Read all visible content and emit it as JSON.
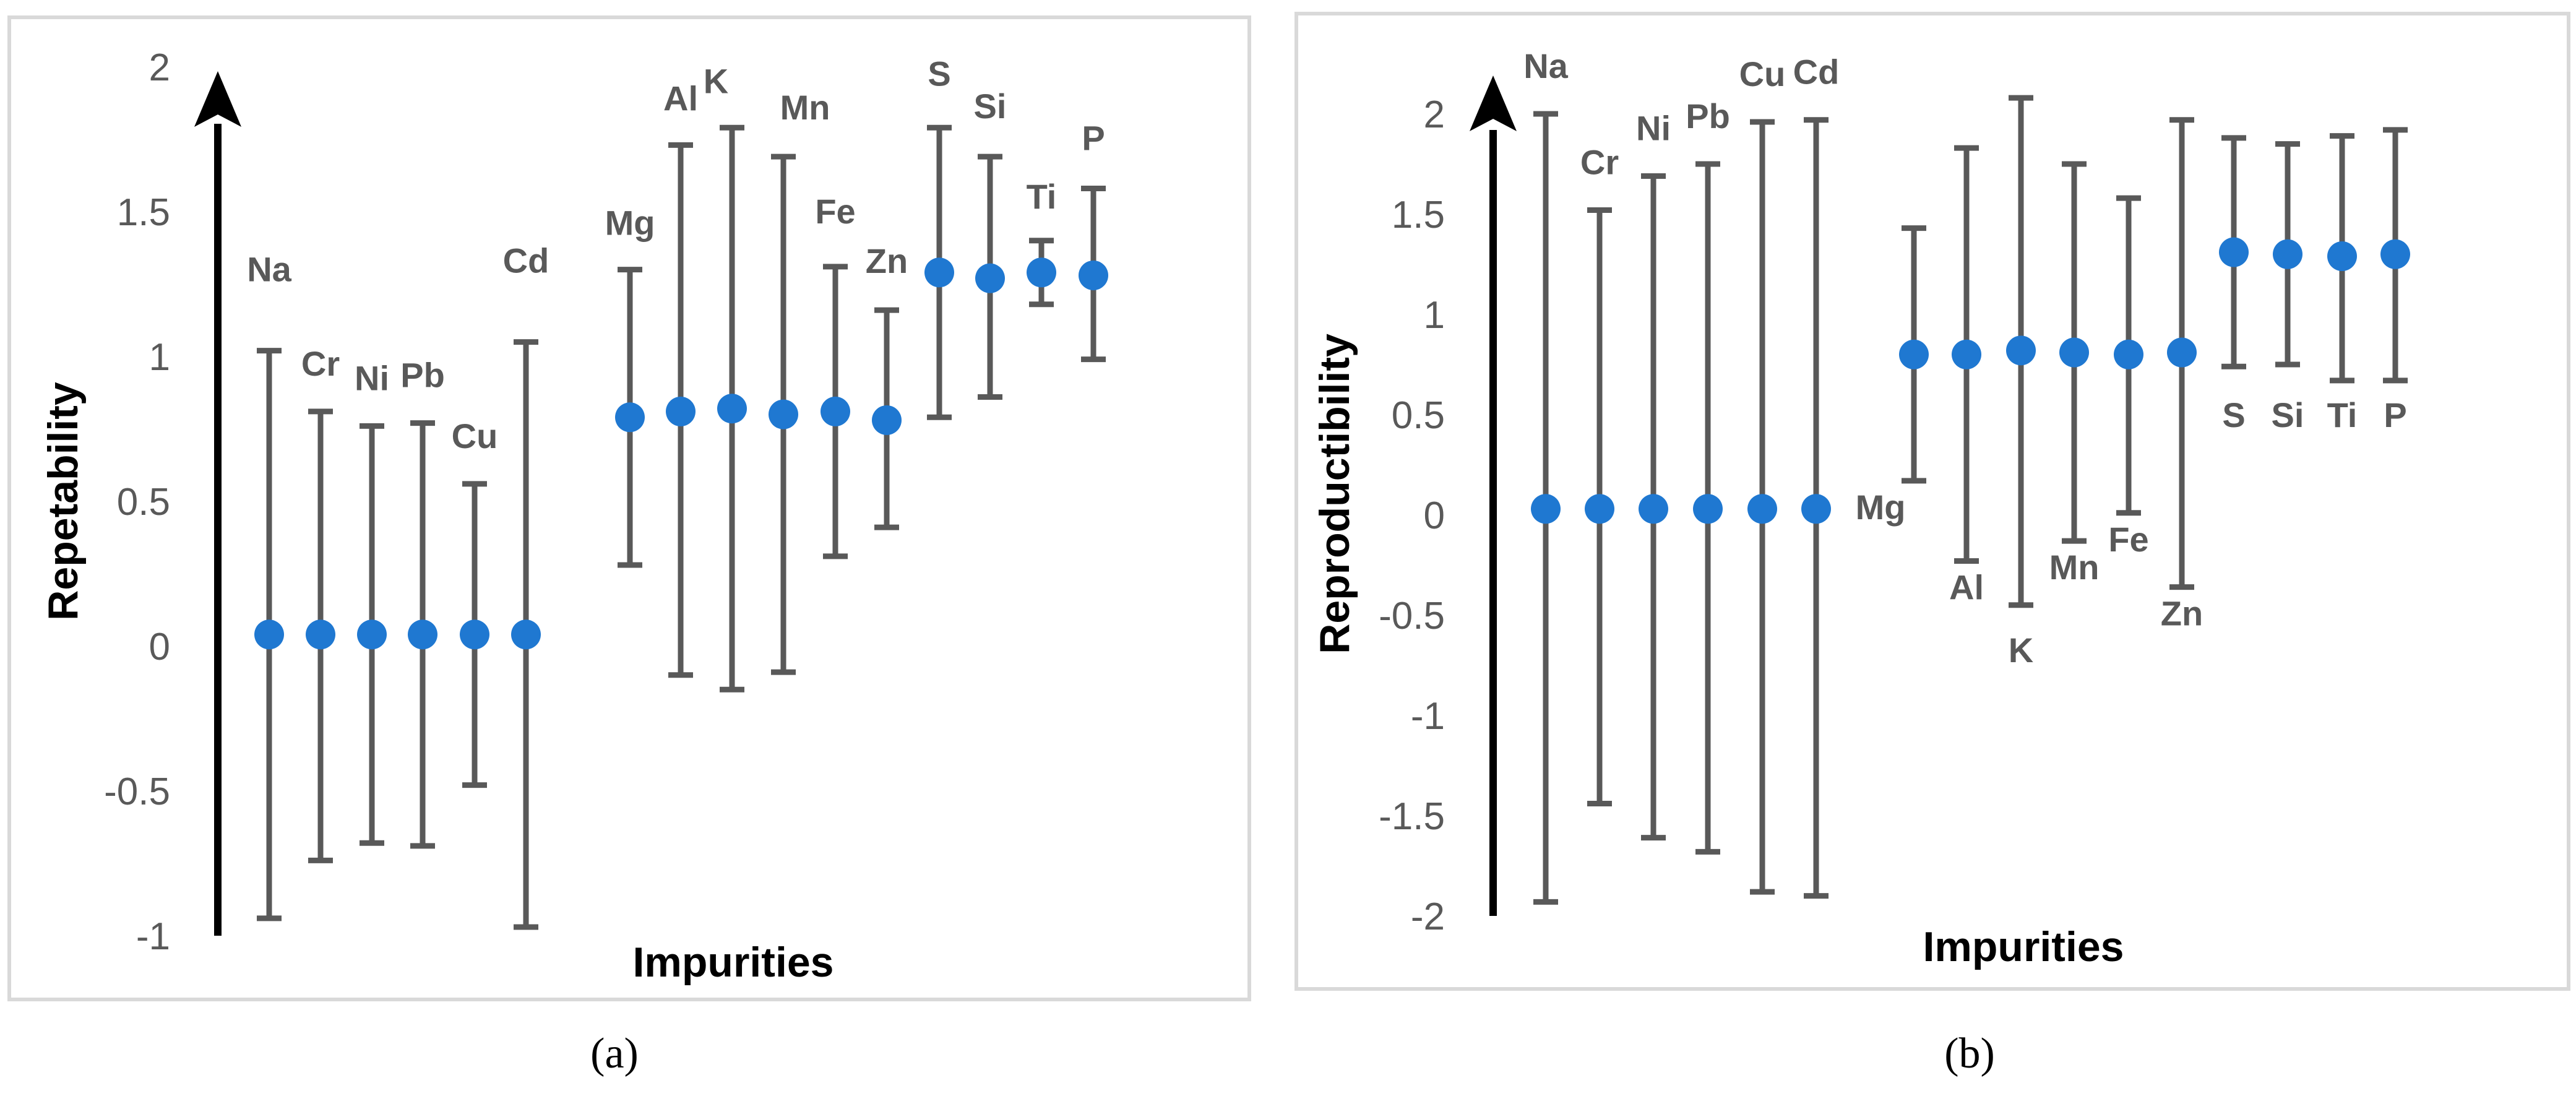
{
  "chart_data": [
    {
      "type": "scatter",
      "panel": "a",
      "caption": "(a)",
      "xlabel": "Impurities",
      "ylabel": "Repetability",
      "ylim": [
        -1,
        2
      ],
      "yticks": [
        "2",
        "1.5",
        "1",
        "0.5",
        "0",
        "-0.5",
        "-1"
      ],
      "series": [
        {
          "name": "Na",
          "value": 0.04,
          "low": -0.94,
          "high": 1.02
        },
        {
          "name": "Cr",
          "value": 0.04,
          "low": -0.74,
          "high": 0.81
        },
        {
          "name": "Ni",
          "value": 0.04,
          "low": -0.68,
          "high": 0.76
        },
        {
          "name": "Pb",
          "value": 0.04,
          "low": -0.69,
          "high": 0.77
        },
        {
          "name": "Cu",
          "value": 0.04,
          "low": -0.48,
          "high": 0.56
        },
        {
          "name": "Cd",
          "value": 0.04,
          "low": -0.97,
          "high": 1.05
        },
        {
          "name": "Mg",
          "value": 0.79,
          "low": 0.28,
          "high": 1.3
        },
        {
          "name": "Al",
          "value": 0.81,
          "low": -0.1,
          "high": 1.73
        },
        {
          "name": "K",
          "value": 0.82,
          "low": -0.15,
          "high": 1.79
        },
        {
          "name": "Mn",
          "value": 0.8,
          "low": -0.09,
          "high": 1.69
        },
        {
          "name": "Fe",
          "value": 0.81,
          "low": 0.31,
          "high": 1.31
        },
        {
          "name": "Zn",
          "value": 0.78,
          "low": 0.41,
          "high": 1.16
        },
        {
          "name": "S",
          "value": 1.29,
          "low": 0.79,
          "high": 1.79
        },
        {
          "name": "Si",
          "value": 1.27,
          "low": 0.86,
          "high": 1.69
        },
        {
          "name": "Ti",
          "value": 1.29,
          "low": 1.18,
          "high": 1.4
        },
        {
          "name": "P",
          "value": 1.28,
          "low": 0.99,
          "high": 1.58
        }
      ]
    },
    {
      "type": "scatter",
      "panel": "b",
      "caption": "(b)",
      "xlabel": "Impurities",
      "ylabel": "Reproductibility",
      "ylim": [
        -2,
        2
      ],
      "yticks": [
        "2",
        "1.5",
        "1",
        "0.5",
        "0",
        "-0.5",
        "-1",
        "-1.5",
        "-2"
      ],
      "series": [
        {
          "name": "Na",
          "value": 0.03,
          "low": -1.93,
          "high": 2.0
        },
        {
          "name": "Cr",
          "value": 0.03,
          "low": -1.44,
          "high": 1.52
        },
        {
          "name": "Ni",
          "value": 0.03,
          "low": -1.61,
          "high": 1.69
        },
        {
          "name": "Pb",
          "value": 0.03,
          "low": -1.68,
          "high": 1.75
        },
        {
          "name": "Cu",
          "value": 0.03,
          "low": -1.88,
          "high": 1.96
        },
        {
          "name": "Cd",
          "value": 0.03,
          "low": -1.9,
          "high": 1.97
        },
        {
          "name": "Mg",
          "value": 0.8,
          "low": 0.17,
          "high": 1.43
        },
        {
          "name": "Al",
          "value": 0.8,
          "low": -0.23,
          "high": 1.83
        },
        {
          "name": "K",
          "value": 0.82,
          "low": -0.45,
          "high": 2.08
        },
        {
          "name": "Mn",
          "value": 0.81,
          "low": -0.13,
          "high": 1.75
        },
        {
          "name": "Fe",
          "value": 0.8,
          "low": 0.01,
          "high": 1.58
        },
        {
          "name": "Zn",
          "value": 0.81,
          "low": -0.36,
          "high": 1.97
        },
        {
          "name": "S",
          "value": 1.31,
          "low": 0.74,
          "high": 1.88
        },
        {
          "name": "Si",
          "value": 1.3,
          "low": 0.75,
          "high": 1.85
        },
        {
          "name": "Ti",
          "value": 1.29,
          "low": 0.67,
          "high": 1.89
        },
        {
          "name": "P",
          "value": 1.3,
          "low": 0.67,
          "high": 1.92
        }
      ]
    }
  ],
  "colors": {
    "marker": "#1f78d1",
    "errorbar": "#595959",
    "axis_arrow": "#000000",
    "frame": "#d9d9d9"
  }
}
